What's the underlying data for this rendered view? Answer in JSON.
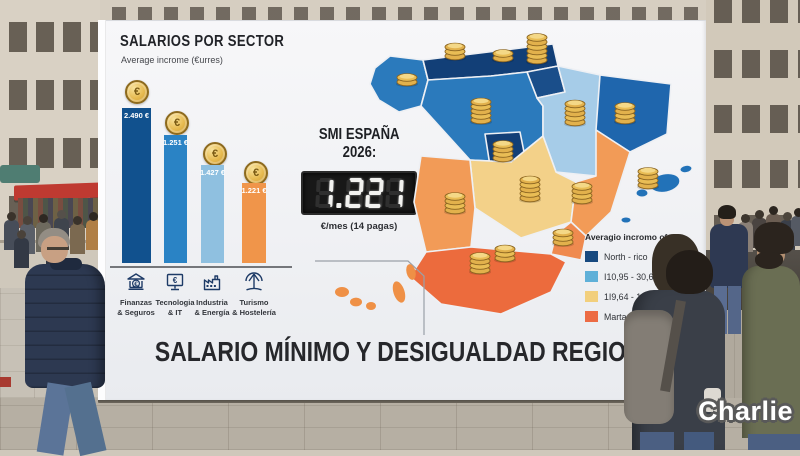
{
  "watermark": "Charlie",
  "billboard": {
    "bar_chart": {
      "title": "SALARIOS POR SECTOR",
      "subtitle": "Average incrome (€urres)",
      "coin_symbol": "€",
      "bars": [
        {
          "value": "2.490 €",
          "sector_line1": "Finanzas",
          "sector_line2": "& Seguros",
          "color": "#11518e",
          "icon": "bank-icon"
        },
        {
          "value": "1.251 €",
          "sector_line1": "Tecnologia",
          "sector_line2": "& IT",
          "color": "#2a83c5",
          "icon": "monitor-euro-icon"
        },
        {
          "value": "1.427 €",
          "sector_line1": "Industria",
          "sector_line2": "& Energía",
          "color": "#8fc0e0",
          "icon": "factory-icon"
        },
        {
          "value": "1.221 €",
          "sector_line1": "Turismo",
          "sector_line2": "& Hostelería",
          "color": "#f0954a",
          "icon": "umbrella-icon"
        }
      ]
    },
    "smi_panel": {
      "title_line1": "SMI ESPAÑA",
      "title_line2": "2026:",
      "display_value": "1.221",
      "caption": "€/mes (14 pagas)"
    },
    "legend": {
      "title": "Averagio incromo of",
      "items": [
        {
          "label": "North - rico",
          "color": "#17497f"
        },
        {
          "label": "I10,95 - 30,69",
          "color": "#5fb0d8"
        },
        {
          "label": "1I9,64 - 1 1",
          "color": "#f2cf7d"
        },
        {
          "label": "Marta - s",
          "color": "#ec6b44"
        }
      ]
    },
    "headline": "SALARIO MÍNIMO Y DESIGUALDAD REGIONAL",
    "map_region_colors": {
      "north_dark_navy": "#123f77",
      "medium_blue": "#2b7abc",
      "catalonia_blue": "#1f66ad",
      "light_blue": "#a6cce8",
      "tan_yellow": "#f3d189",
      "orange": "#f29b57",
      "deep_orange": "#ec6b3d"
    }
  },
  "chart_data": {
    "type": "bar",
    "title": "SALARIOS POR SECTOR",
    "subtitle": "Average incrome (€urres)",
    "categories": [
      "Finanzas & Seguros",
      "Tecnologia & IT",
      "Industria & Energía",
      "Turismo & Hostelería"
    ],
    "values": [
      2490,
      1251,
      1427,
      1221
    ],
    "value_labels": [
      "2.490 €",
      "1.251 €",
      "1.427 €",
      "1.221 €"
    ],
    "colors": [
      "#11518e",
      "#2a83c5",
      "#8fc0e0",
      "#f0954a"
    ],
    "ylabel": "Average income (euros)",
    "legend_position": "right",
    "grid": false
  }
}
